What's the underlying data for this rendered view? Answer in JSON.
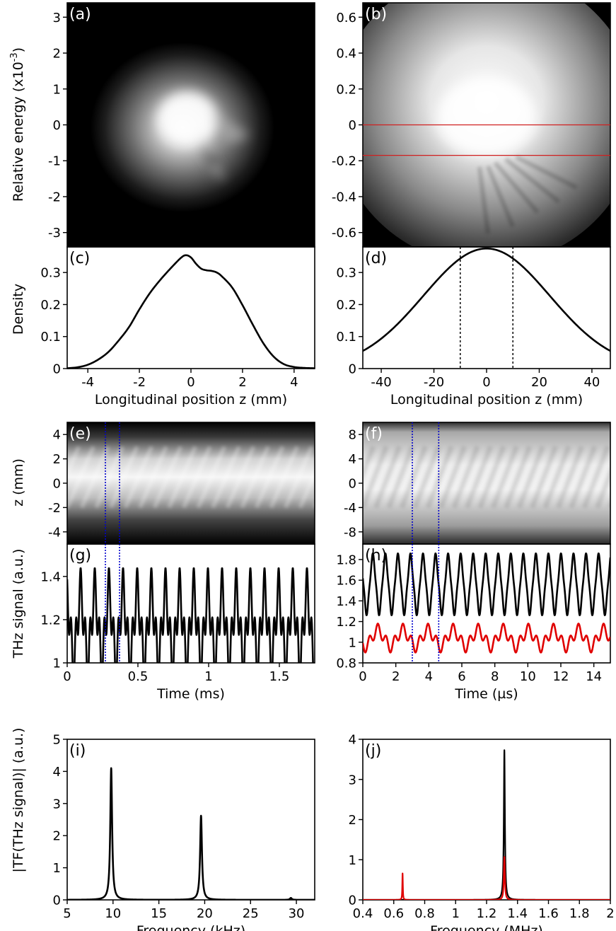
{
  "figure": {
    "y_label_ab": "Relative energy (x10",
    "y_label_ab_exp": "-3",
    "y_label_ab_close": ")",
    "y_label_cd": "Density",
    "y_label_ef": "z (mm)",
    "y_label_gh": "THz signal (a.u.)",
    "y_label_ij": "|TF(THz signal)| (a.u.)"
  },
  "colors": {
    "black": "#000000",
    "red": "#e00000",
    "blue": "#0000cc",
    "hline": "#d02020"
  },
  "chart_data": [
    {
      "id": "a",
      "panel_label": "(a)",
      "type": "heatmap",
      "xlim": [
        -5,
        5
      ],
      "ylim": [
        -3.4,
        3.4
      ],
      "yticks": [
        -3,
        -2,
        -1,
        0,
        1,
        2,
        3
      ],
      "ytick_labels": [
        "-3",
        "-2",
        "-1",
        "0",
        "1",
        "2",
        "3"
      ]
    },
    {
      "id": "b",
      "panel_label": "(b)",
      "type": "heatmap",
      "ylim": [
        -0.68,
        0.68
      ],
      "yticks": [
        -0.6,
        -0.4,
        -0.2,
        0,
        0.2,
        0.4,
        0.6
      ],
      "ytick_labels": [
        "-0.6",
        "-0.4",
        "-0.2",
        "0",
        "0.2",
        "0.4",
        "0.6"
      ],
      "hlines": [
        0,
        -0.17
      ]
    },
    {
      "id": "c",
      "panel_label": "(c)",
      "type": "line",
      "xlabel": "Longitudinal position z (mm)",
      "xlim": [
        -4.8,
        4.8
      ],
      "ylim": [
        0,
        0.38
      ],
      "xticks": [
        -4,
        -2,
        0,
        2,
        4
      ],
      "xtick_labels": [
        "-4",
        "-2",
        "0",
        "2",
        "4"
      ],
      "yticks": [
        0,
        0.1,
        0.2,
        0.3
      ],
      "ytick_labels": [
        "0",
        "0.1",
        "0.2",
        "0.3"
      ],
      "x": [
        -4.8,
        -4.4,
        -4,
        -3.6,
        -3.2,
        -2.8,
        -2.4,
        -2,
        -1.6,
        -1.2,
        -0.8,
        -0.4,
        -0.2,
        0,
        0.2,
        0.4,
        0.6,
        0.8,
        1,
        1.2,
        1.6,
        2,
        2.4,
        2.8,
        3.2,
        3.6,
        4,
        4.4,
        4.8
      ],
      "y": [
        0.001,
        0.004,
        0.012,
        0.028,
        0.052,
        0.088,
        0.13,
        0.185,
        0.235,
        0.276,
        0.312,
        0.345,
        0.354,
        0.347,
        0.327,
        0.312,
        0.307,
        0.305,
        0.3,
        0.288,
        0.253,
        0.198,
        0.137,
        0.08,
        0.038,
        0.014,
        0.005,
        0.002,
        0.001
      ]
    },
    {
      "id": "d",
      "panel_label": "(d)",
      "type": "line",
      "xlabel": "Longitudinal position z (mm)",
      "xlim": [
        -47,
        47
      ],
      "ylim": [
        0,
        0.38
      ],
      "xticks": [
        -40,
        -20,
        0,
        20,
        40
      ],
      "xtick_labels": [
        "-40",
        "-20",
        "0",
        "20",
        "40"
      ],
      "yticks": [
        0,
        0.1,
        0.2,
        0.3
      ],
      "ytick_labels": [
        "0",
        "0.1",
        "0.2",
        "0.3"
      ],
      "gauss": {
        "amp": 0.375,
        "mu": 0,
        "sigma": 24
      },
      "vlines": [
        -10,
        10
      ]
    },
    {
      "id": "e",
      "panel_label": "(e)",
      "type": "heatmap",
      "xlim": [
        0,
        1.75
      ],
      "ylim": [
        -5,
        5
      ],
      "yticks": [
        -4,
        -2,
        0,
        2,
        4
      ],
      "ytick_labels": [
        "-4",
        "-2",
        "0",
        "2",
        "4"
      ],
      "vlines": [
        0.27,
        0.37
      ]
    },
    {
      "id": "f",
      "panel_label": "(f)",
      "type": "heatmap",
      "xlim": [
        0,
        15
      ],
      "ylim": [
        -10,
        10
      ],
      "yticks": [
        -8,
        -4,
        0,
        4,
        8
      ],
      "ytick_labels": [
        "-8",
        "-4",
        "0",
        "4",
        "8"
      ],
      "vlines": [
        3,
        4.6
      ]
    },
    {
      "id": "g",
      "panel_label": "(g)",
      "type": "line",
      "xlabel": "Time (ms)",
      "xlim": [
        0,
        1.75
      ],
      "ylim": [
        1,
        1.55
      ],
      "xticks": [
        0,
        0.5,
        1,
        1.5
      ],
      "xtick_labels": [
        "0",
        "0.5",
        "1",
        "1.5"
      ],
      "yticks": [
        1,
        1.2,
        1.4
      ],
      "ytick_labels": [
        "1",
        "1.2",
        "1.4"
      ],
      "vlines": [
        0.27,
        0.37
      ],
      "series": [
        {
          "period": 0.1,
          "phase": 0.05,
          "mean": 1.17,
          "amp1": 0.16,
          "amp2": 0.11
        }
      ]
    },
    {
      "id": "h",
      "panel_label": "(h)",
      "type": "line",
      "xlabel": "Time (µs)",
      "xlim": [
        0,
        15
      ],
      "ylim": [
        0.8,
        1.95
      ],
      "xticks": [
        0,
        2,
        4,
        6,
        8,
        10,
        12,
        14
      ],
      "xtick_labels": [
        "0",
        "2",
        "4",
        "6",
        "8",
        "10",
        "12",
        "14"
      ],
      "yticks": [
        0.8,
        1,
        1.2,
        1.4,
        1.6,
        1.8
      ],
      "ytick_labels": [
        "0.8",
        "1",
        "1.2",
        "1.4",
        "1.6",
        "1.8"
      ],
      "vlines": [
        3,
        4.6
      ],
      "series": [
        {
          "color": "#000000",
          "period": 0.76,
          "phase": 0.2,
          "mean": 1.56,
          "amp1": 0.27,
          "amp2": 0.03
        },
        {
          "color": "#e00000",
          "period": 1.52,
          "phase": 0.4,
          "mean": 1.04,
          "amp1": 0.08,
          "amp2": 0.06
        }
      ]
    },
    {
      "id": "i",
      "panel_label": "(i)",
      "type": "line",
      "xlabel": "Frequency (kHz)",
      "xlim": [
        5,
        32
      ],
      "ylim": [
        0,
        5
      ],
      "xticks": [
        5,
        10,
        15,
        20,
        25,
        30
      ],
      "xtick_labels": [
        "5",
        "10",
        "15",
        "20",
        "25",
        "30"
      ],
      "yticks": [
        0,
        1,
        2,
        3,
        4,
        5
      ],
      "ytick_labels": [
        "0",
        "1",
        "2",
        "3",
        "4",
        "5"
      ],
      "peaks": [
        {
          "x": 9.8,
          "h": 4.1,
          "w": 0.12
        },
        {
          "x": 19.6,
          "h": 2.62,
          "w": 0.12
        },
        {
          "x": 29.4,
          "h": 0.06,
          "w": 0.12
        }
      ]
    },
    {
      "id": "j",
      "panel_label": "(j)",
      "type": "line",
      "xlabel": "Frequency (MHz)",
      "xlim": [
        0.4,
        2
      ],
      "ylim": [
        0,
        4
      ],
      "xticks": [
        0.4,
        0.6,
        0.8,
        1,
        1.2,
        1.4,
        1.6,
        1.8,
        2
      ],
      "xtick_labels": [
        "0.4",
        "0.6",
        "0.8",
        "1",
        "1.2",
        "1.4",
        "1.6",
        "1.8",
        "2"
      ],
      "yticks": [
        0,
        1,
        2,
        3,
        4
      ],
      "ytick_labels": [
        "0",
        "1",
        "2",
        "3",
        "4"
      ],
      "series": [
        {
          "color": "#000000",
          "peaks": [
            {
              "x": 1.315,
              "h": 3.73,
              "w": 0.004
            }
          ]
        },
        {
          "color": "#e00000",
          "peaks": [
            {
              "x": 0.657,
              "h": 0.66,
              "w": 0.002
            },
            {
              "x": 1.315,
              "h": 1.07,
              "w": 0.004
            }
          ]
        }
      ]
    }
  ]
}
